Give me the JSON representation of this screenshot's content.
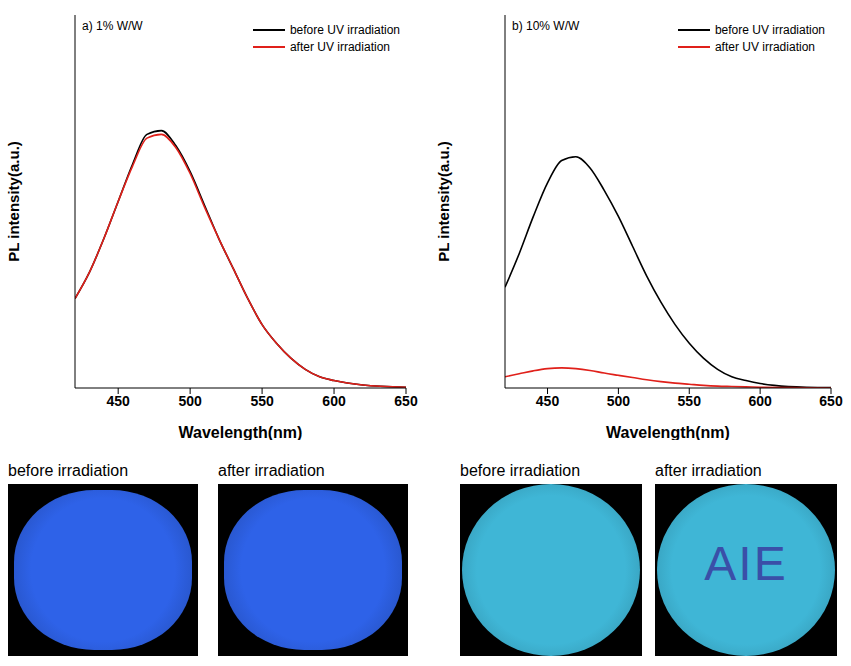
{
  "chart_data": [
    {
      "type": "line",
      "title": "a) 1% W/W",
      "x_label": "Wavelength(nm)",
      "y_label": "PL intensity(a.u.)",
      "x": [
        420,
        430,
        440,
        450,
        460,
        470,
        480,
        490,
        500,
        510,
        520,
        530,
        540,
        550,
        560,
        570,
        580,
        590,
        600,
        620,
        650
      ],
      "series": [
        {
          "name": "before UV irradiation",
          "color": "#000000",
          "values": [
            0.24,
            0.31,
            0.4,
            0.5,
            0.6,
            0.68,
            0.69,
            0.65,
            0.58,
            0.49,
            0.4,
            0.32,
            0.24,
            0.17,
            0.12,
            0.08,
            0.05,
            0.03,
            0.02,
            0.008,
            0.002
          ]
        },
        {
          "name": "after UV irradiation",
          "color": "#e0201a",
          "values": [
            0.24,
            0.31,
            0.4,
            0.5,
            0.595,
            0.67,
            0.68,
            0.645,
            0.575,
            0.485,
            0.4,
            0.32,
            0.24,
            0.17,
            0.12,
            0.08,
            0.05,
            0.03,
            0.02,
            0.008,
            0.002
          ]
        }
      ],
      "xlim": [
        420,
        650
      ],
      "xticks": [
        450,
        500,
        550,
        600,
        650
      ],
      "ylim": [
        0,
        1
      ],
      "tick_labels": "x",
      "legend": "upper right"
    },
    {
      "type": "line",
      "title": "b) 10% W/W",
      "x_label": "Wavelength(nm)",
      "y_label": "PL intensity(a.u.)",
      "x": [
        420,
        430,
        440,
        450,
        460,
        470,
        480,
        490,
        500,
        510,
        520,
        530,
        540,
        550,
        560,
        570,
        580,
        590,
        600,
        620,
        650
      ],
      "series": [
        {
          "name": "before UV irradiation",
          "color": "#000000",
          "values": [
            0.27,
            0.36,
            0.46,
            0.55,
            0.61,
            0.62,
            0.59,
            0.53,
            0.46,
            0.38,
            0.3,
            0.23,
            0.17,
            0.12,
            0.08,
            0.05,
            0.03,
            0.02,
            0.012,
            0.004,
            0.001
          ]
        },
        {
          "name": "after UV irradiation",
          "color": "#e0201a",
          "values": [
            0.03,
            0.038,
            0.046,
            0.052,
            0.054,
            0.052,
            0.047,
            0.04,
            0.034,
            0.028,
            0.022,
            0.017,
            0.013,
            0.01,
            0.007,
            0.005,
            0.004,
            0.003,
            0.002,
            0.001,
            0
          ]
        }
      ],
      "xlim": [
        420,
        650
      ],
      "xticks": [
        450,
        500,
        550,
        600,
        650
      ],
      "ylim": [
        0,
        1
      ],
      "tick_labels": "x",
      "legend": "upper right"
    }
  ],
  "photos": [
    {
      "images": [
        {
          "caption": "before irradiation",
          "color": "#2e62e8"
        },
        {
          "caption": "after irradiation",
          "color": "#2e62e8"
        }
      ]
    },
    {
      "images": [
        {
          "caption": "before irradiation",
          "color": "#3fb6d6"
        },
        {
          "caption": "after irradiation",
          "color": "#3fb6d6",
          "overlay_text": "AIE",
          "overlay_color": "#3a4fa8"
        }
      ]
    }
  ]
}
